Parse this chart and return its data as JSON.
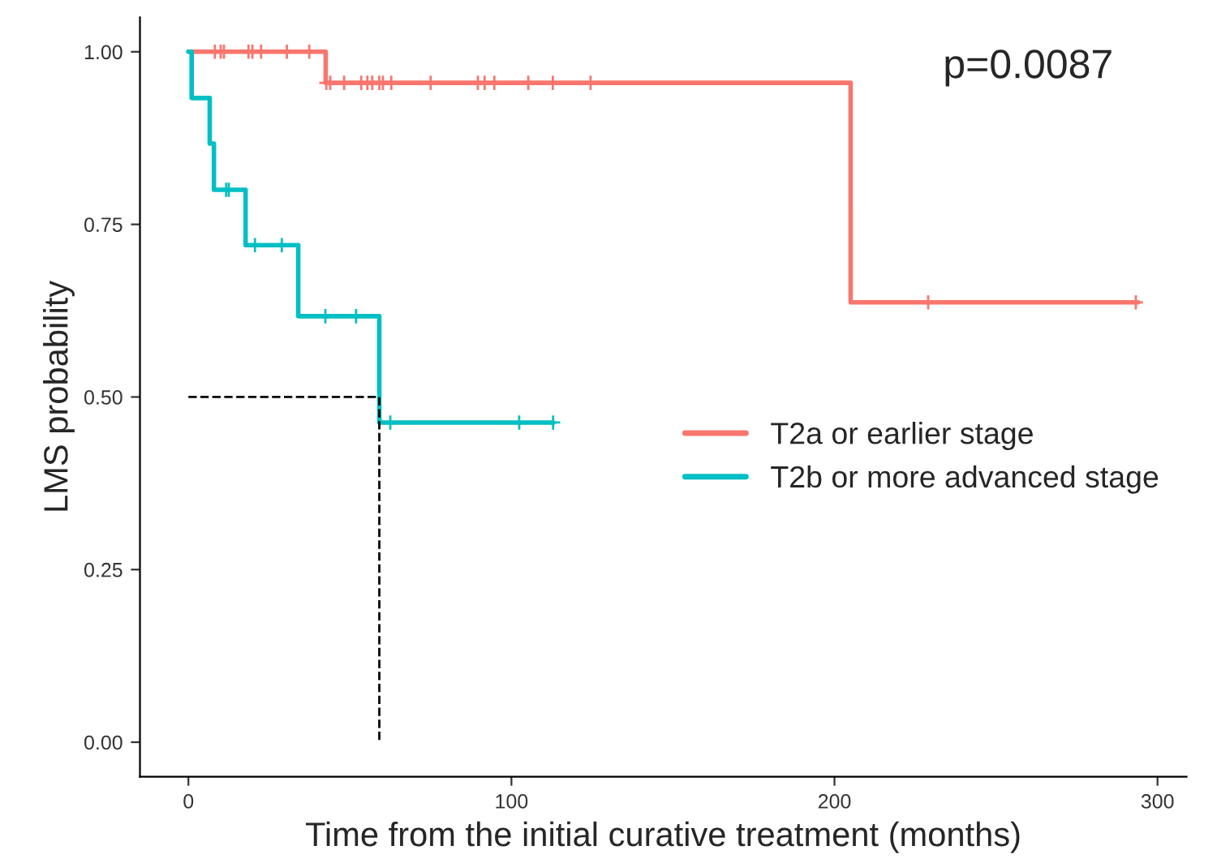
{
  "chart_data": {
    "type": "step",
    "xlabel": "Time from the initial curative treatment (months)",
    "ylabel": "LMS probability",
    "xlim": [
      -15,
      309
    ],
    "ylim": [
      -0.05,
      1.05
    ],
    "xticks": [
      0,
      100,
      200,
      300
    ],
    "yticks": [
      {
        "value": 0,
        "label": "0.00"
      },
      {
        "value": 0.25,
        "label": "0.25"
      },
      {
        "value": 0.5,
        "label": "0.50"
      },
      {
        "value": 0.75,
        "label": "0.75"
      },
      {
        "value": 1,
        "label": "1.00"
      }
    ],
    "grid": false,
    "legend": "right",
    "annotations": [
      "p=0.0087"
    ],
    "series": [
      {
        "name": "T2a or earlier stage",
        "color": "#f8766d",
        "x": [
          0,
          42.5,
          205,
          294
        ],
        "values": [
          1.0,
          0.955,
          0.637,
          0.637
        ]
      },
      {
        "name": "T2b or more advanced stage",
        "color": "#00bfc4",
        "x": [
          0,
          1,
          6.6,
          7.9,
          17.7,
          34,
          59.1,
          113
        ],
        "values": [
          1.0,
          0.933,
          0.867,
          0.8,
          0.72,
          0.617,
          0.463,
          0.463
        ]
      },
      {
        "color": "#f8766d",
        "type": "scatter",
        "marker": "cross",
        "x": [
          8.2,
          10,
          11,
          18.6,
          19.8,
          22.5,
          30.5,
          37.4,
          42.7,
          43.9,
          48.2,
          53.5,
          55.4,
          56.9,
          59.1,
          60.2,
          62.8,
          75,
          89.6,
          91.7,
          94.7,
          105.2,
          112.8,
          124.5,
          229,
          293.3
        ],
        "values": [
          1,
          1,
          1,
          1,
          1,
          1,
          1,
          1,
          0.955,
          0.955,
          0.955,
          0.955,
          0.955,
          0.955,
          0.955,
          0.955,
          0.955,
          0.955,
          0.955,
          0.955,
          0.955,
          0.955,
          0.955,
          0.955,
          0.637,
          0.637
        ]
      },
      {
        "color": "#00bfc4",
        "type": "scatter",
        "marker": "cross",
        "x": [
          11.7,
          12.5,
          20.6,
          28.9,
          42.4,
          51.9,
          62.5,
          102.4,
          112.9
        ],
        "values": [
          0.8,
          0.8,
          0.72,
          0.72,
          0.617,
          0.617,
          0.463,
          0.463,
          0.463
        ]
      },
      {
        "color": "#000000",
        "type": "line",
        "line_style": "dashed",
        "x": [
          0,
          59.1,
          59.1
        ],
        "values": [
          0.5,
          0.5,
          0
        ]
      }
    ]
  }
}
